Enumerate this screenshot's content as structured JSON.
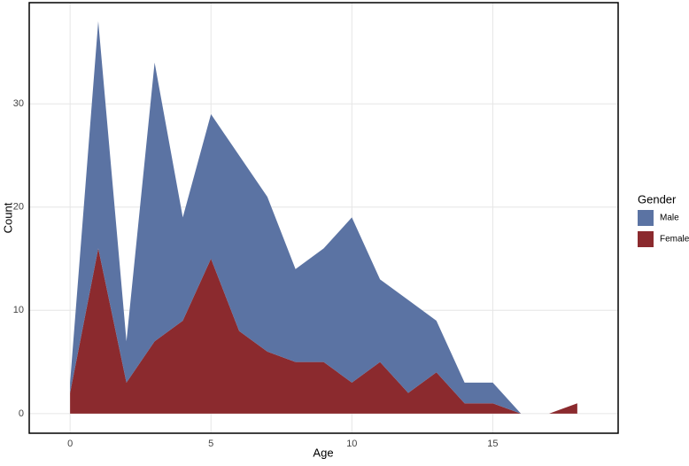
{
  "chart_data": {
    "type": "area",
    "stacked": true,
    "x_label": "Age",
    "y_label": "Count",
    "legend_title": "Gender",
    "legend": "right",
    "grid": true,
    "x": [
      0,
      1,
      2,
      3,
      4,
      5,
      6,
      7,
      8,
      9,
      10,
      11,
      12,
      13,
      14,
      15,
      16,
      17,
      18
    ],
    "series": [
      {
        "name": "Male",
        "color": "#5b73a3",
        "values": [
          1,
          22,
          4,
          27,
          10,
          14,
          17,
          15,
          9,
          11,
          16,
          8,
          9,
          5,
          2,
          2,
          0,
          0,
          0
        ]
      },
      {
        "name": "Female",
        "color": "#8b2a2e",
        "values": [
          2,
          16,
          3,
          7,
          9,
          15,
          8,
          6,
          5,
          5,
          3,
          5,
          2,
          4,
          1,
          1,
          0,
          0,
          1
        ]
      }
    ],
    "xlim": [
      -1.45,
      19.45
    ],
    "xticks": [
      0,
      5,
      10,
      15
    ],
    "ylim": [
      -1.9,
      39.8
    ],
    "yticks": [
      0,
      10,
      20,
      30
    ]
  }
}
